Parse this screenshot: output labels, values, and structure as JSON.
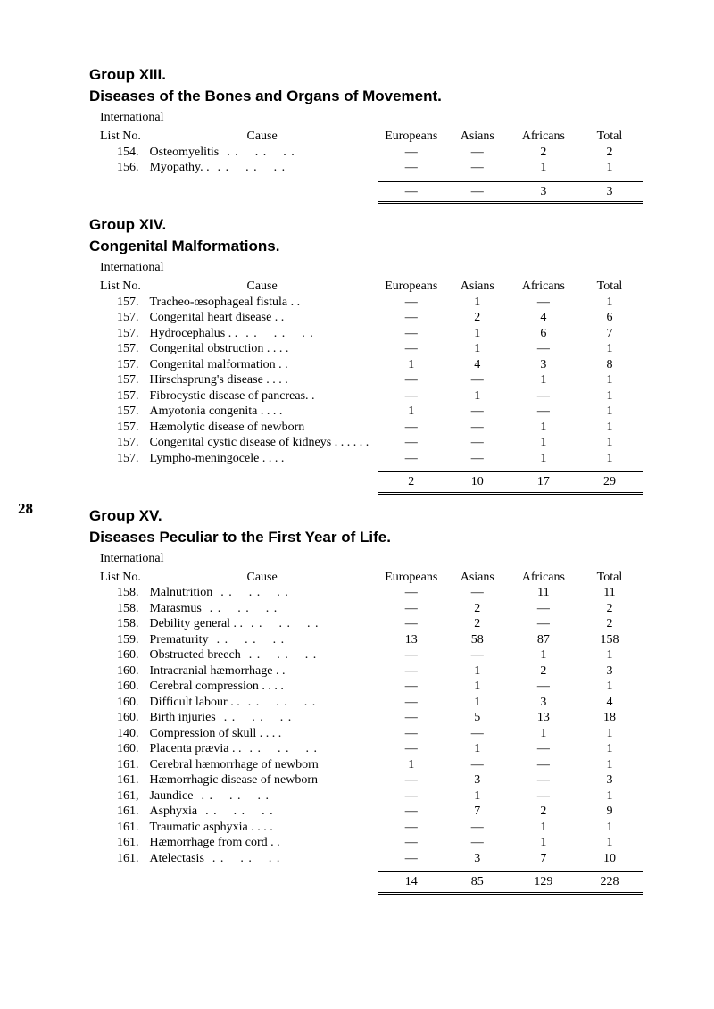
{
  "pageNumber": "28",
  "groups": [
    {
      "groupLabel": "Group XIII.",
      "title": "Diseases of the Bones and Organs of Movement.",
      "subhead": "International",
      "headers": {
        "listNo": "List No.",
        "cause": "Cause",
        "c1": "Europeans",
        "c2": "Asians",
        "c3": "Africans",
        "c4": "Total"
      },
      "rows": [
        {
          "no": "154.",
          "cause": "Osteomyelitis",
          "dots": true,
          "v": [
            "—",
            "—",
            "2",
            "2"
          ]
        },
        {
          "no": "156.",
          "cause": "Myopathy. .",
          "dots": true,
          "v": [
            "—",
            "—",
            "1",
            "1"
          ]
        }
      ],
      "subtotal": [
        "—",
        "—",
        "3",
        "3"
      ]
    },
    {
      "groupLabel": "Group XIV.",
      "title": "Congenital Malformations.",
      "subhead": "International",
      "headers": {
        "listNo": "List No.",
        "cause": "Cause",
        "c1": "Europeans",
        "c2": "Asians",
        "c3": "Africans",
        "c4": "Total"
      },
      "rows": [
        {
          "no": "157.",
          "cause": "Tracheo-œsophageal fistula   . .",
          "v": [
            "—",
            "1",
            "—",
            "1"
          ]
        },
        {
          "no": "157.",
          "cause": "Congenital heart disease       . .",
          "v": [
            "—",
            "2",
            "4",
            "6"
          ]
        },
        {
          "no": "157.",
          "cause": "Hydrocephalus  . .",
          "dots": true,
          "v": [
            "—",
            "1",
            "6",
            "7"
          ]
        },
        {
          "no": "157.",
          "cause": "Congenital obstruction  . .    . .",
          "v": [
            "—",
            "1",
            "—",
            "1"
          ]
        },
        {
          "no": "157.",
          "cause": "Congenital malformation      . .",
          "v": [
            "1",
            "4",
            "3",
            "8"
          ]
        },
        {
          "no": "157.",
          "cause": "Hirschsprung's disease  . .    . .",
          "v": [
            "—",
            "—",
            "1",
            "1"
          ]
        },
        {
          "no": "157.",
          "cause": "Fibrocystic disease of pancreas. .",
          "v": [
            "—",
            "1",
            "—",
            "1"
          ]
        },
        {
          "no": "157.",
          "cause": "Amyotonia congenita   . .    . .",
          "v": [
            "1",
            "—",
            "—",
            "1"
          ]
        },
        {
          "no": "157.",
          "cause": "Hæmolytic disease of newborn",
          "v": [
            "—",
            "—",
            "1",
            "1"
          ]
        },
        {
          "no": "157.",
          "cause": "Congenital  cystic  disease  of kidneys          . .    . .    . .",
          "v": [
            "—",
            "—",
            "1",
            "1"
          ]
        },
        {
          "no": "157.",
          "cause": "Lympho-meningocele   . .    . .",
          "v": [
            "—",
            "—",
            "1",
            "1"
          ]
        }
      ],
      "subtotal": [
        "2",
        "10",
        "17",
        "29"
      ]
    },
    {
      "groupLabel": "Group XV.",
      "title": "Diseases Peculiar to the First Year of Life.",
      "subhead": "International",
      "headers": {
        "listNo": "List No.",
        "cause": "Cause",
        "c1": "Europeans",
        "c2": "Asians",
        "c3": "Africans",
        "c4": "Total"
      },
      "rows": [
        {
          "no": "158.",
          "cause": "Malnutrition",
          "dots": true,
          "v": [
            "—",
            "—",
            "11",
            "11"
          ]
        },
        {
          "no": "158.",
          "cause": "Marasmus",
          "dots": true,
          "v": [
            "—",
            "2",
            "—",
            "2"
          ]
        },
        {
          "no": "158.",
          "cause": "Debility general . .",
          "dots": true,
          "v": [
            "—",
            "2",
            "—",
            "2"
          ]
        },
        {
          "no": "159.",
          "cause": "Prematurity",
          "dots": true,
          "v": [
            "13",
            "58",
            "87",
            "158"
          ]
        },
        {
          "no": "160.",
          "cause": "Obstructed breech",
          "dots": true,
          "v": [
            "—",
            "—",
            "1",
            "1"
          ]
        },
        {
          "no": "160.",
          "cause": "Intracranial hæmorrhage      . .",
          "v": [
            "—",
            "1",
            "2",
            "3"
          ]
        },
        {
          "no": "160.",
          "cause": "Cerebral compression  . .    . .",
          "v": [
            "—",
            "1",
            "—",
            "1"
          ]
        },
        {
          "no": "160.",
          "cause": "Difficult labour  . .",
          "dots": true,
          "v": [
            "—",
            "1",
            "3",
            "4"
          ]
        },
        {
          "no": "160.",
          "cause": "Birth injuries",
          "dots": true,
          "v": [
            "—",
            "5",
            "13",
            "18"
          ]
        },
        {
          "no": "140.",
          "cause": "Compression of skull  . .    . .",
          "v": [
            "—",
            "—",
            "1",
            "1"
          ]
        },
        {
          "no": "160.",
          "cause": "Placenta prævia  . .",
          "dots": true,
          "v": [
            "—",
            "1",
            "—",
            "1"
          ]
        },
        {
          "no": "161.",
          "cause": "Cerebral hæmorrhage of newborn",
          "v": [
            "1",
            "—",
            "—",
            "1"
          ]
        },
        {
          "no": "161.",
          "cause": "Hæmorrhagic disease of newborn",
          "v": [
            "—",
            "3",
            "—",
            "3"
          ]
        },
        {
          "no": "161,",
          "cause": "Jaundice",
          "dots": true,
          "v": [
            "—",
            "1",
            "—",
            "1"
          ]
        },
        {
          "no": "161.",
          "cause": "Asphyxia",
          "dots": true,
          "v": [
            "—",
            "7",
            "2",
            "9"
          ]
        },
        {
          "no": "161.",
          "cause": "Traumatic asphyxia    . .    . .",
          "v": [
            "—",
            "—",
            "1",
            "1"
          ]
        },
        {
          "no": "161.",
          "cause": "Hæmorrhage from cord        . .",
          "v": [
            "—",
            "—",
            "1",
            "1"
          ]
        },
        {
          "no": "161.",
          "cause": "Atelectasis",
          "dots": true,
          "v": [
            "—",
            "3",
            "7",
            "10"
          ]
        }
      ],
      "subtotal": [
        "14",
        "85",
        "129",
        "228"
      ]
    }
  ]
}
